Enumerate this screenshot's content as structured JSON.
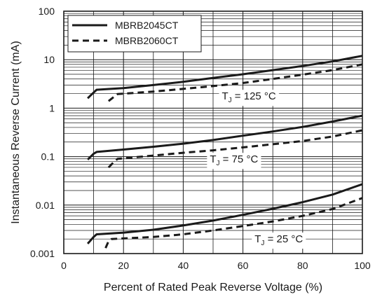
{
  "chart_data": {
    "type": "line",
    "xlabel": "Percent of Rated Peak Reverse Voltage (%)",
    "ylabel": "Instantaneous Reverse Current (mA)",
    "xlim": [
      0,
      100
    ],
    "ylim": [
      0.001,
      100
    ],
    "yscale": "log",
    "grid": true,
    "legend_position": "top-left",
    "x_ticks": [
      0,
      20,
      40,
      60,
      80,
      100
    ],
    "x_tick_labels": [
      "0",
      "20",
      "40",
      "60",
      "80",
      "100"
    ],
    "y_ticks": [
      0.001,
      0.01,
      0.1,
      1,
      10,
      100
    ],
    "y_tick_labels": [
      "0.001",
      "0.01",
      "0.1",
      "1",
      "10",
      "100"
    ],
    "series": [
      {
        "name": "MBRB2045CT",
        "style": "solid",
        "condition": "TJ = 125 °C",
        "x": [
          8,
          10,
          11,
          20,
          30,
          40,
          50,
          60,
          70,
          80,
          90,
          100
        ],
        "y": [
          1.6,
          2.1,
          2.4,
          2.6,
          3.0,
          3.5,
          4.2,
          5.0,
          6.1,
          7.4,
          9.2,
          12.0
        ]
      },
      {
        "name": "MBRB2045CT",
        "style": "solid",
        "condition": "TJ = 75 °C",
        "x": [
          8,
          10,
          11,
          20,
          30,
          40,
          50,
          60,
          70,
          80,
          90,
          100
        ],
        "y": [
          0.087,
          0.115,
          0.125,
          0.14,
          0.16,
          0.185,
          0.22,
          0.27,
          0.33,
          0.41,
          0.53,
          0.7
        ]
      },
      {
        "name": "MBRB2045CT",
        "style": "solid",
        "condition": "TJ = 25 °C",
        "x": [
          8,
          10,
          11,
          20,
          30,
          40,
          50,
          60,
          70,
          80,
          90,
          100
        ],
        "y": [
          0.0016,
          0.0022,
          0.0025,
          0.0027,
          0.0031,
          0.0038,
          0.0048,
          0.0063,
          0.0084,
          0.0115,
          0.0165,
          0.027
        ]
      },
      {
        "name": "MBRB2060CT",
        "style": "dashed",
        "condition": "TJ = 125 °C",
        "x": [
          15,
          17,
          18,
          30,
          40,
          50,
          60,
          70,
          80,
          90,
          100
        ],
        "y": [
          1.4,
          1.75,
          1.95,
          2.2,
          2.5,
          2.85,
          3.3,
          4.0,
          4.9,
          6.1,
          8.0
        ]
      },
      {
        "name": "MBRB2060CT",
        "style": "dashed",
        "condition": "TJ = 75 °C",
        "x": [
          15,
          17,
          18,
          30,
          40,
          50,
          60,
          70,
          80,
          90,
          100
        ],
        "y": [
          0.06,
          0.08,
          0.09,
          0.105,
          0.12,
          0.135,
          0.155,
          0.18,
          0.21,
          0.26,
          0.35
        ]
      },
      {
        "name": "MBRB2060CT",
        "style": "dashed",
        "condition": "TJ = 25 °C",
        "x": [
          14,
          15,
          16,
          30,
          40,
          50,
          60,
          70,
          80,
          90,
          100
        ],
        "y": [
          0.0013,
          0.0018,
          0.002,
          0.0022,
          0.0025,
          0.003,
          0.0037,
          0.0046,
          0.006,
          0.0083,
          0.014
        ]
      }
    ],
    "legend": [
      {
        "label": "MBRB2045CT",
        "style": "solid"
      },
      {
        "label": "MBRB2060CT",
        "style": "dashed"
      }
    ],
    "annotations": [
      {
        "main": "T",
        "sub": "J",
        "rest": " = 125 °C",
        "x": 62,
        "y": 1.5
      },
      {
        "main": "T",
        "sub": "J",
        "rest": " = 75 °C",
        "x": 57,
        "y": 0.075
      },
      {
        "main": "T",
        "sub": "J",
        "rest": " = 25 °C",
        "x": 72,
        "y": 0.0017
      }
    ]
  },
  "colors": {
    "line": "#1a1a1a",
    "grid": "#1a1a1a",
    "background": "#ffffff"
  }
}
